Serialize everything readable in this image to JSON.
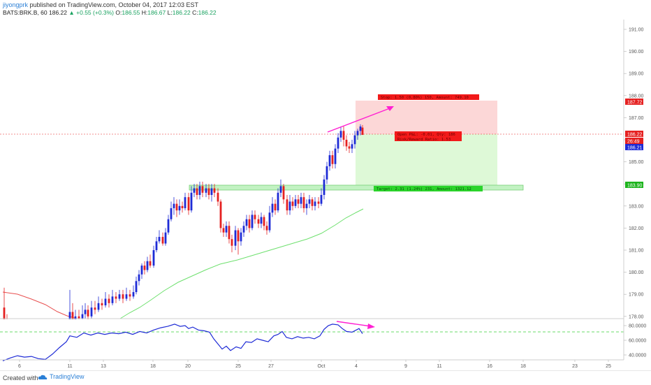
{
  "header": {
    "author": "jiyongprk",
    "published_text": " published on TradingView.com, October 04, 2017 12:03 EST"
  },
  "symbol_line": {
    "symbol": "BATS:BRK.B, 60",
    "last": "186.22",
    "change": "▲ +0.55 (+0.3%)",
    "o_label": "O:",
    "o": "186.55",
    "h_label": "H:",
    "h": "186.67",
    "l_label": "L:",
    "l": "186.22",
    "c_label": "C:",
    "c": "186.22"
  },
  "price_axis": {
    "ticks": [
      "191.00",
      "190.00",
      "189.00",
      "188.00",
      "187.00",
      "186.00",
      "185.00",
      "184.00",
      "183.00",
      "182.00",
      "181.00",
      "180.00",
      "179.00",
      "178.00"
    ],
    "tags": [
      {
        "label": "187.72",
        "color": "#e52020"
      },
      {
        "label": "186.22",
        "color": "#e52020"
      },
      {
        "label": "26:49",
        "color": "#e52020"
      },
      {
        "label": "186.21",
        "color": "#1e2bd6"
      },
      {
        "label": "183.90",
        "color": "#1db41d"
      }
    ]
  },
  "rsi_axis": {
    "ticks": [
      "80.0000",
      "60.0000",
      "40.0000"
    ]
  },
  "time_axis": {
    "labels": [
      "6",
      "11",
      "13",
      "18",
      "20",
      "25",
      "27",
      "Oct",
      "4",
      "9",
      "11",
      "16",
      "18",
      "23",
      "25"
    ]
  },
  "position_tool": {
    "stop_label": "Stop: 1.50 (0.80%) 150, Amount: 749.10",
    "entry_label_1": "Open P&L: -0.01, Qty: 186",
    "entry_label_2": "Risk/Reward Ratio: 1.53",
    "target_label": "Target: 2.31 (1.24%) 231, Amount: 1321.12"
  },
  "colors": {
    "up_candle": "#1e2bd6",
    "down_candle": "#e52020",
    "ma_green": "#6ee06e",
    "ma_red": "#e85050",
    "rsi_line": "#1e2bd6",
    "annotation": "#ff1fd2",
    "stop_zone": "#fbd0d0",
    "target_zone": "#d8f8d0",
    "support_zone": "#bff2bf"
  },
  "footer": {
    "created_with": "Created with",
    "brand": "TradingView"
  }
}
